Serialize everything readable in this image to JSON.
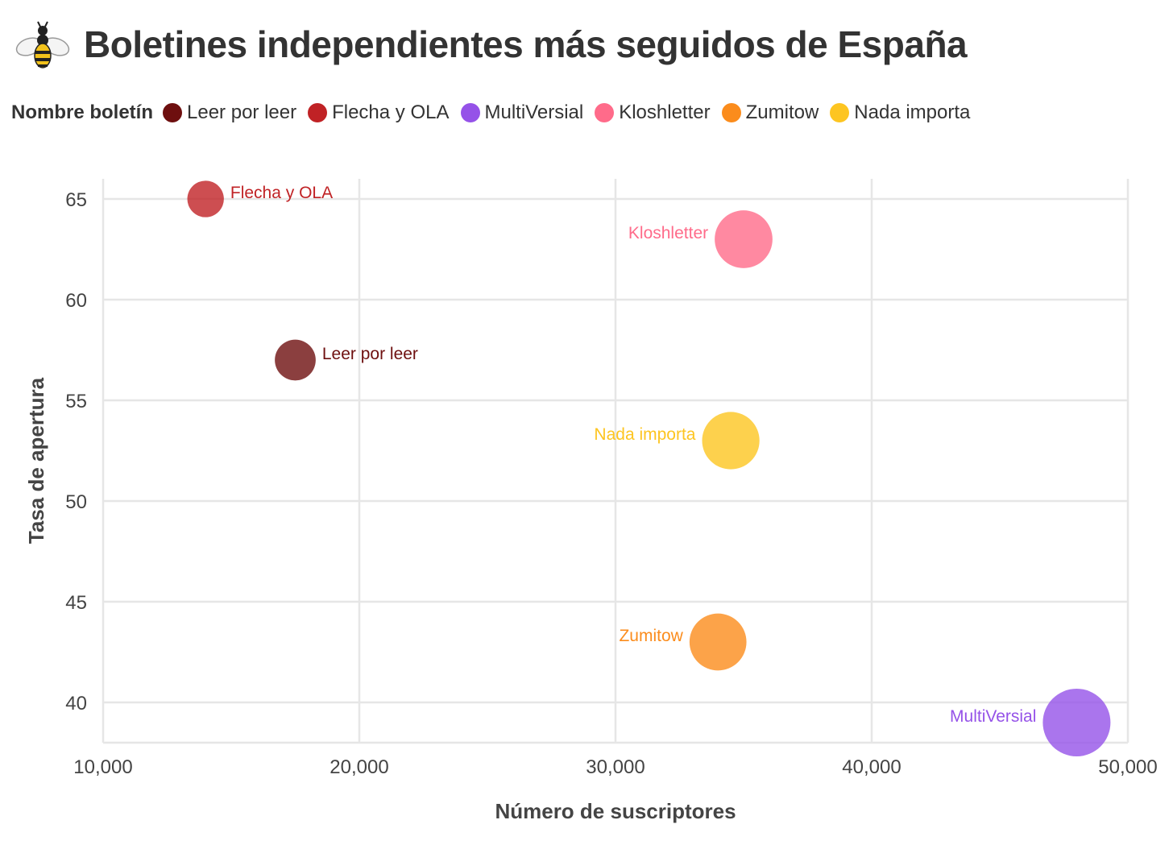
{
  "header": {
    "title": "Boletines independientes más seguidos de España",
    "logo_icon": "wasp-icon"
  },
  "legend": {
    "title": "Nombre boletín",
    "items": [
      {
        "label": "Leer por leer",
        "color": "#6e0f0f"
      },
      {
        "label": "Flecha y OLA",
        "color": "#c02225"
      },
      {
        "label": "MultiVersial",
        "color": "#9552e8"
      },
      {
        "label": "Kloshletter",
        "color": "#ff6b8a"
      },
      {
        "label": "Zumitow",
        "color": "#fb8c1c"
      },
      {
        "label": "Nada importa",
        "color": "#fdc521"
      }
    ]
  },
  "chart_data": {
    "type": "scatter",
    "title": "Boletines independientes más seguidos de España",
    "xlabel": "Número de suscriptores",
    "ylabel": "Tasa de apertura",
    "xlim": [
      10000,
      50000
    ],
    "ylim": [
      38,
      66
    ],
    "xticks": [
      10000,
      20000,
      30000,
      40000,
      50000
    ],
    "xtick_labels": [
      "10,000",
      "20,000",
      "30,000",
      "40,000",
      "50,000"
    ],
    "yticks": [
      40,
      45,
      50,
      55,
      60,
      65
    ],
    "ytick_labels": [
      "40",
      "45",
      "50",
      "55",
      "60",
      "65"
    ],
    "grid": true,
    "legend_position": "top-left",
    "size_note": "bubble size proportional to subscribers",
    "points": [
      {
        "name": "Leer por leer",
        "x": 17500,
        "y": 57,
        "color": "#6e0f0f",
        "label_side": "right"
      },
      {
        "name": "Flecha y OLA",
        "x": 14000,
        "y": 65,
        "color": "#c02225",
        "label_side": "right"
      },
      {
        "name": "MultiVersial",
        "x": 48000,
        "y": 39,
        "color": "#9552e8",
        "label_side": "left"
      },
      {
        "name": "Kloshletter",
        "x": 35000,
        "y": 63,
        "color": "#ff6b8a",
        "label_side": "left"
      },
      {
        "name": "Zumitow",
        "x": 34000,
        "y": 43,
        "color": "#fb8c1c",
        "label_side": "left"
      },
      {
        "name": "Nada importa",
        "x": 34500,
        "y": 53,
        "color": "#fdc521",
        "label_side": "left"
      }
    ]
  }
}
